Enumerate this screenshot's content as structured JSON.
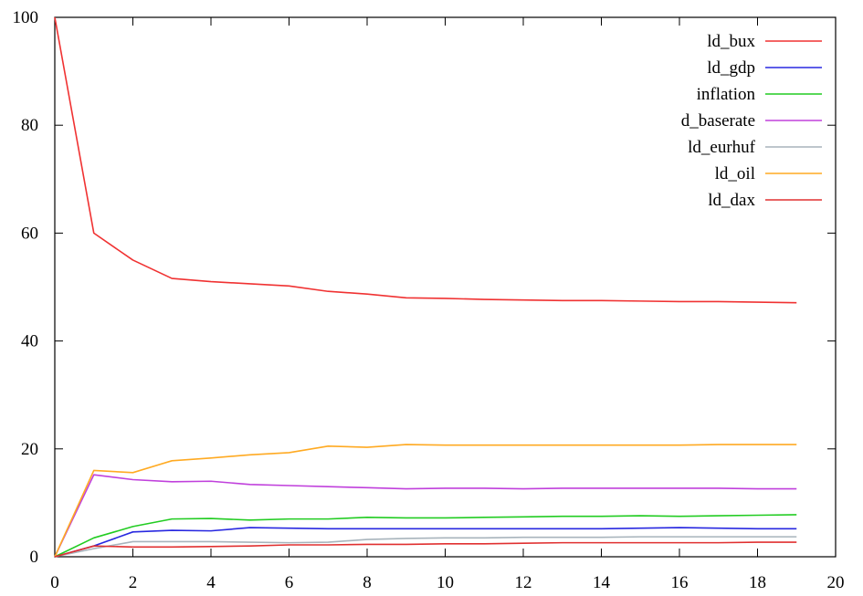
{
  "chart_data": {
    "type": "line",
    "title": "",
    "xlabel": "",
    "ylabel": "",
    "xlim": [
      0,
      20
    ],
    "ylim": [
      0,
      100
    ],
    "x_ticks": [
      0,
      2,
      4,
      6,
      8,
      10,
      12,
      14,
      16,
      18,
      20
    ],
    "y_ticks": [
      0,
      20,
      40,
      60,
      80,
      100
    ],
    "grid": false,
    "legend_position": "top-right",
    "x": [
      0,
      1,
      2,
      3,
      4,
      5,
      6,
      7,
      8,
      9,
      10,
      11,
      12,
      13,
      14,
      15,
      16,
      17,
      18,
      19
    ],
    "series": [
      {
        "name": "ld_bux",
        "color": "#f03232",
        "values": [
          100,
          60,
          55,
          51.6,
          51,
          50.6,
          50.2,
          49.2,
          48.7,
          48,
          47.9,
          47.7,
          47.6,
          47.5,
          47.5,
          47.4,
          47.3,
          47.3,
          47.2,
          47.1
        ]
      },
      {
        "name": "ld_gdp",
        "color": "#2828e0",
        "values": [
          0,
          2,
          4.6,
          4.9,
          4.8,
          5.4,
          5.3,
          5.2,
          5.2,
          5.2,
          5.2,
          5.2,
          5.2,
          5.2,
          5.2,
          5.3,
          5.4,
          5.3,
          5.2,
          5.2
        ]
      },
      {
        "name": "inflation",
        "color": "#22cc22",
        "values": [
          0,
          3.5,
          5.6,
          7,
          7.1,
          6.8,
          7,
          7,
          7.3,
          7.2,
          7.2,
          7.3,
          7.4,
          7.5,
          7.5,
          7.6,
          7.5,
          7.6,
          7.7,
          7.8
        ]
      },
      {
        "name": "d_baserate",
        "color": "#c040dc",
        "values": [
          0,
          15.2,
          14.3,
          13.9,
          14,
          13.4,
          13.2,
          13,
          12.8,
          12.6,
          12.7,
          12.7,
          12.6,
          12.7,
          12.7,
          12.7,
          12.7,
          12.7,
          12.6,
          12.6
        ]
      },
      {
        "name": "ld_eurhuf",
        "color": "#a8b4bc",
        "values": [
          0,
          1.5,
          2.8,
          2.8,
          2.8,
          2.7,
          2.6,
          2.7,
          3.2,
          3.4,
          3.5,
          3.5,
          3.6,
          3.6,
          3.6,
          3.7,
          3.7,
          3.7,
          3.7,
          3.7
        ]
      },
      {
        "name": "ld_oil",
        "color": "#ffaa22",
        "values": [
          0,
          16,
          15.6,
          17.8,
          18.3,
          18.9,
          19.3,
          20.5,
          20.3,
          20.8,
          20.7,
          20.7,
          20.7,
          20.7,
          20.7,
          20.7,
          20.7,
          20.8,
          20.8,
          20.8
        ]
      },
      {
        "name": "ld_dax",
        "color": "#e03030",
        "values": [
          0,
          2,
          1.8,
          1.8,
          1.9,
          2,
          2.2,
          2.2,
          2.3,
          2.3,
          2.4,
          2.4,
          2.5,
          2.6,
          2.6,
          2.6,
          2.6,
          2.6,
          2.7,
          2.7
        ]
      }
    ]
  }
}
